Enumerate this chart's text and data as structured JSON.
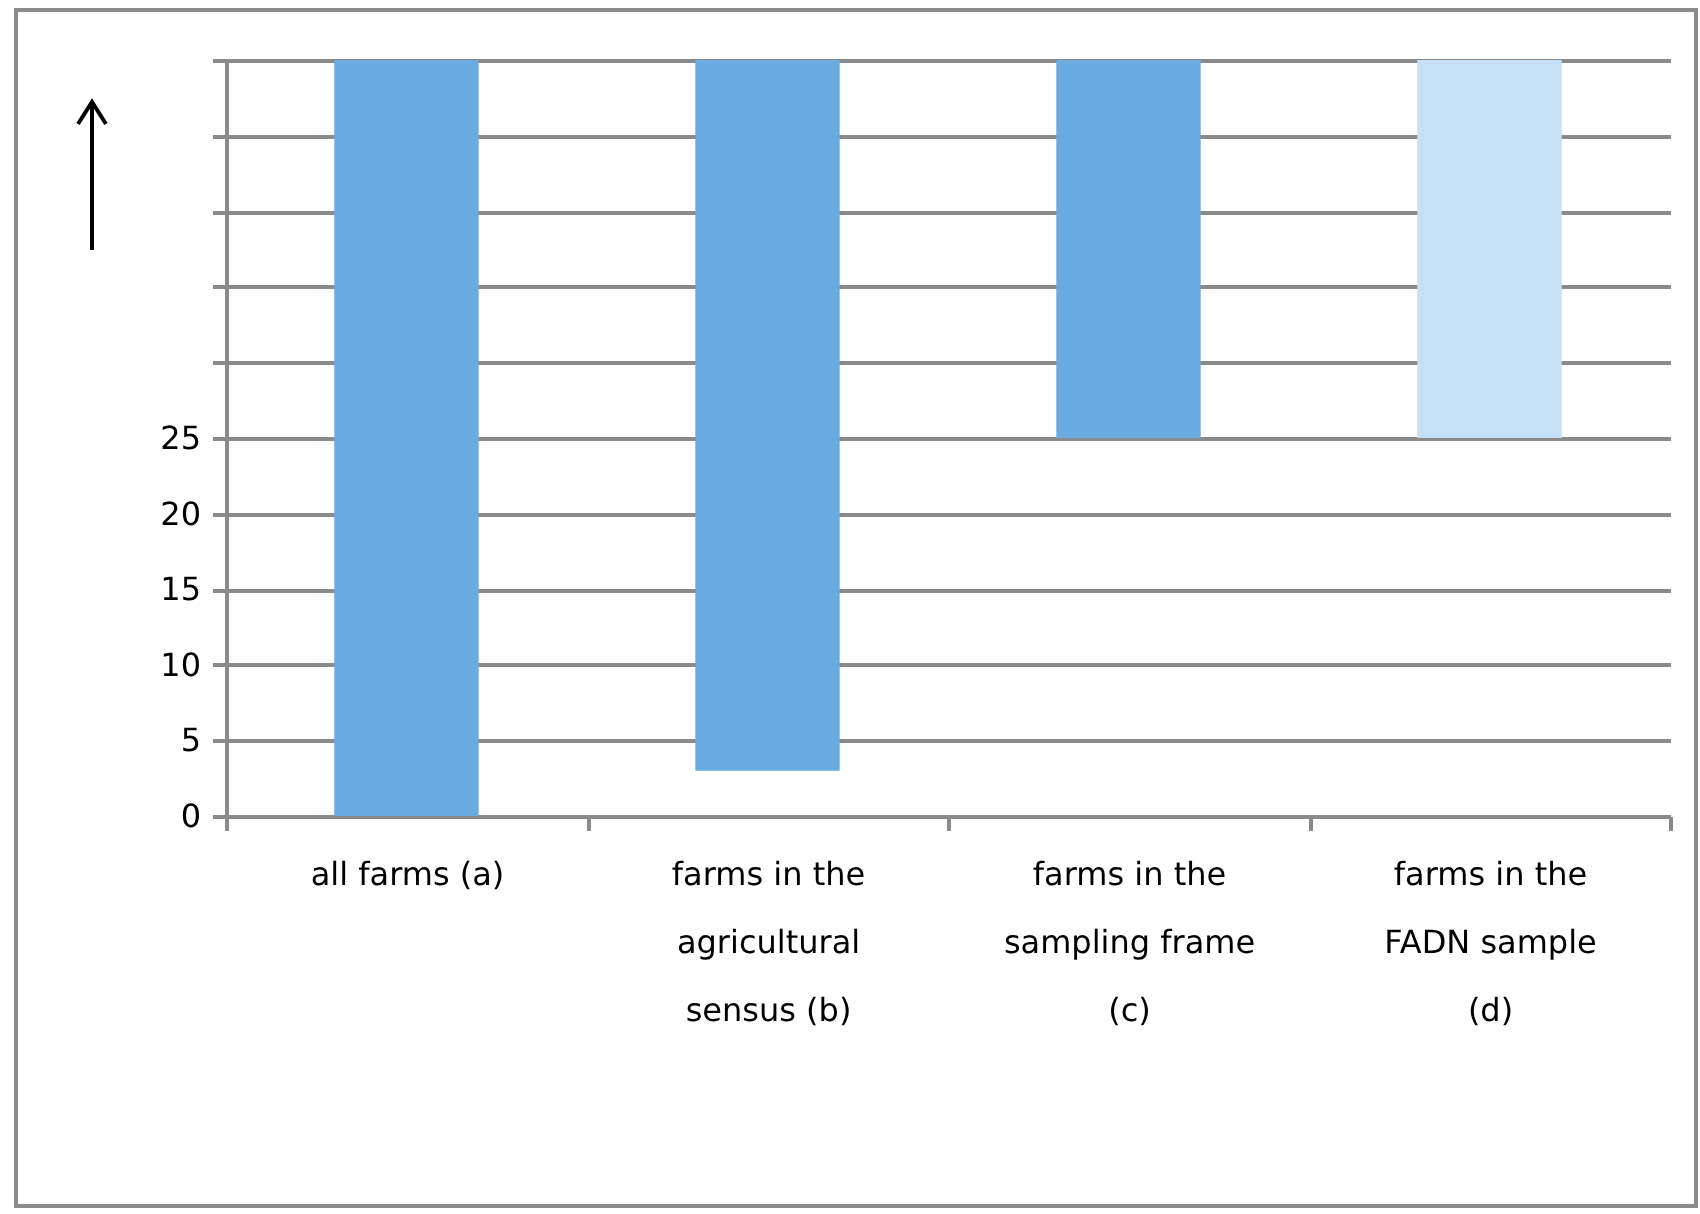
{
  "chart_data": {
    "type": "bar",
    "categories": [
      "all farms (a)",
      "farms in the agricultural sensus (b)",
      "farms in the sampling frame (c)",
      "farms in the FADN sample (d)"
    ],
    "values": [
      50,
      47,
      25,
      25
    ],
    "base": [
      0,
      3,
      25,
      25
    ],
    "colors": [
      "#6aace2",
      "#6aace2",
      "#6aace2",
      "#c6e0f6"
    ],
    "ylim": [
      0,
      50
    ],
    "yticks": [
      0,
      5,
      10,
      15,
      20,
      25,
      {
        "value": 30,
        "label": null
      },
      {
        "value": 35,
        "label": null
      },
      {
        "value": 40,
        "label": null
      },
      {
        "value": 45,
        "label": null
      },
      {
        "value": 50,
        "label": null
      }
    ],
    "grid": "y",
    "legend": false
  }
}
